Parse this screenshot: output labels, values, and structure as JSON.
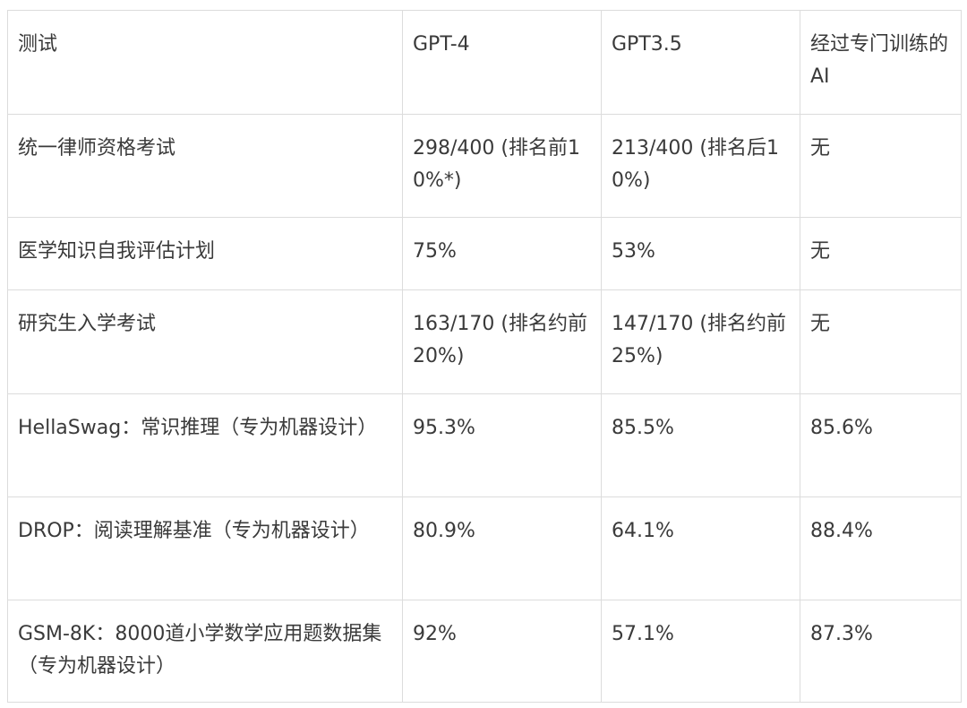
{
  "table": {
    "headers": [
      "测试",
      "GPT-4",
      "GPT3.5",
      "经过专门训练的AI"
    ],
    "rows": [
      [
        "统一律师资格考试",
        "298/400 (排名前10%*)",
        "213/400 (排名后10%)",
        "无"
      ],
      [
        "医学知识自我评估计划",
        "75%",
        "53%",
        "无"
      ],
      [
        "研究生入学考试",
        "163/170 (排名约前20%)",
        "147/170 (排名约前25%)",
        "无"
      ],
      [
        "HellaSwag：常识推理（专为机器设计）",
        "95.3%",
        "85.5%",
        "85.6%"
      ],
      [
        "DROP：阅读理解基准（专为机器设计）",
        "80.9%",
        "64.1%",
        "88.4%"
      ],
      [
        "GSM-8K：8000道小学数学应用题数据集（专为机器设计）",
        "92%",
        "57.1%",
        "87.3%"
      ]
    ]
  }
}
